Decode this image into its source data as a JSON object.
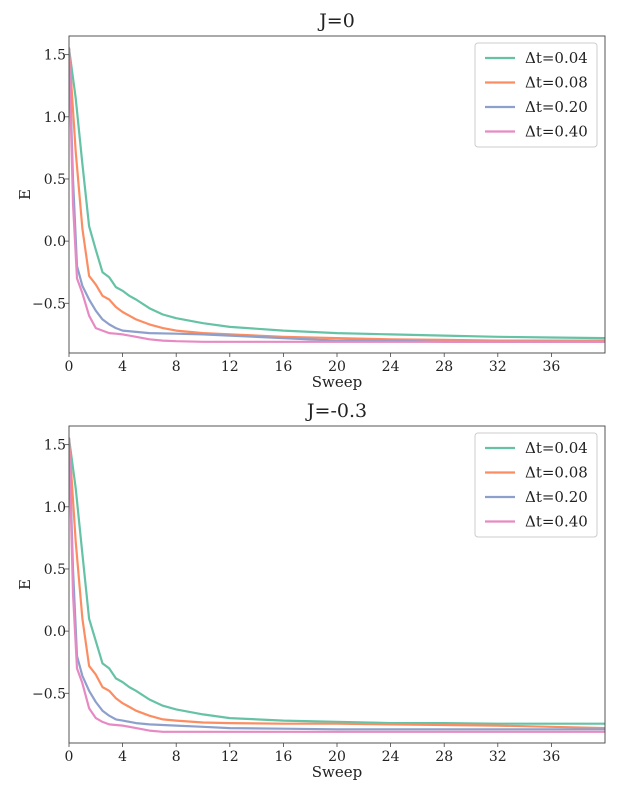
{
  "chart_data": [
    {
      "type": "line",
      "title": "J=0",
      "xlabel": "Sweep",
      "ylabel": "E",
      "xlim": [
        0,
        40
      ],
      "ylim": [
        -0.9,
        1.65
      ],
      "xticks": [
        0,
        4,
        8,
        12,
        16,
        20,
        24,
        28,
        32,
        36
      ],
      "xtick_labels": [
        "0",
        "4",
        "8",
        "12",
        "16",
        "20",
        "24",
        "28",
        "32",
        "36"
      ],
      "yticks": [
        -0.5,
        0.0,
        0.5,
        1.0,
        1.5
      ],
      "ytick_labels": [
        "−0.5",
        "0.0",
        "0.5",
        "1.0",
        "1.5"
      ],
      "legend_position": "top-right",
      "series": [
        {
          "name": "Δt=0.04",
          "color": "#66c2a5",
          "x": [
            0,
            0.5,
            1,
            1.5,
            2,
            2.5,
            3,
            3.5,
            4,
            4.5,
            5,
            6,
            7,
            8,
            10,
            12,
            16,
            20,
            24,
            28,
            32,
            36,
            40
          ],
          "y": [
            1.55,
            1.15,
            0.62,
            0.12,
            -0.07,
            -0.25,
            -0.29,
            -0.37,
            -0.4,
            -0.44,
            -0.47,
            -0.54,
            -0.59,
            -0.62,
            -0.66,
            -0.69,
            -0.72,
            -0.74,
            -0.75,
            -0.76,
            -0.77,
            -0.775,
            -0.78
          ]
        },
        {
          "name": "Δt=0.08",
          "color": "#fc8d62",
          "x": [
            0,
            0.5,
            1,
            1.5,
            2,
            2.5,
            3,
            3.5,
            4,
            4.5,
            5,
            6,
            7,
            8,
            10,
            12,
            16,
            20,
            24,
            28,
            32,
            36,
            40
          ],
          "y": [
            1.55,
            0.72,
            0.1,
            -0.28,
            -0.35,
            -0.44,
            -0.47,
            -0.53,
            -0.57,
            -0.6,
            -0.63,
            -0.67,
            -0.7,
            -0.72,
            -0.74,
            -0.75,
            -0.77,
            -0.78,
            -0.79,
            -0.795,
            -0.8,
            -0.8,
            -0.8
          ]
        },
        {
          "name": "Δt=0.20",
          "color": "#8da0cb",
          "x": [
            0,
            0.3,
            0.6,
            1,
            1.5,
            2,
            2.5,
            3,
            3.5,
            4,
            5,
            6,
            8,
            10,
            12,
            16,
            20,
            24,
            28,
            32,
            36,
            40
          ],
          "y": [
            1.55,
            0.5,
            -0.2,
            -0.36,
            -0.47,
            -0.56,
            -0.63,
            -0.67,
            -0.7,
            -0.72,
            -0.73,
            -0.74,
            -0.745,
            -0.75,
            -0.76,
            -0.78,
            -0.8,
            -0.8,
            -0.81,
            -0.81,
            -0.81,
            -0.81
          ]
        },
        {
          "name": "Δt=0.40",
          "color": "#e78ac3",
          "x": [
            0,
            0.3,
            0.6,
            1,
            1.5,
            2,
            2.5,
            3,
            3.5,
            4,
            5,
            6,
            7,
            8,
            10,
            12,
            16,
            20,
            24,
            28,
            32,
            36,
            40
          ],
          "y": [
            1.55,
            0.3,
            -0.3,
            -0.42,
            -0.6,
            -0.7,
            -0.72,
            -0.74,
            -0.745,
            -0.75,
            -0.77,
            -0.79,
            -0.8,
            -0.805,
            -0.81,
            -0.81,
            -0.81,
            -0.81,
            -0.81,
            -0.81,
            -0.81,
            -0.81,
            -0.81
          ]
        }
      ]
    },
    {
      "type": "line",
      "title": "J=-0.3",
      "xlabel": "Sweep",
      "ylabel": "E",
      "xlim": [
        0,
        40
      ],
      "ylim": [
        -0.9,
        1.65
      ],
      "xticks": [
        0,
        4,
        8,
        12,
        16,
        20,
        24,
        28,
        32,
        36
      ],
      "xtick_labels": [
        "0",
        "4",
        "8",
        "12",
        "16",
        "20",
        "24",
        "28",
        "32",
        "36"
      ],
      "yticks": [
        -0.5,
        0.0,
        0.5,
        1.0,
        1.5
      ],
      "ytick_labels": [
        "−0.5",
        "0.0",
        "0.5",
        "1.0",
        "1.5"
      ],
      "legend_position": "top-right",
      "series": [
        {
          "name": "Δt=0.04",
          "color": "#66c2a5",
          "x": [
            0,
            0.5,
            1,
            1.5,
            2,
            2.5,
            3,
            3.5,
            4,
            4.5,
            5,
            6,
            7,
            8,
            10,
            12,
            16,
            20,
            24,
            28,
            32,
            36,
            40
          ],
          "y": [
            1.55,
            1.15,
            0.62,
            0.1,
            -0.08,
            -0.26,
            -0.3,
            -0.38,
            -0.41,
            -0.45,
            -0.48,
            -0.55,
            -0.6,
            -0.63,
            -0.67,
            -0.7,
            -0.72,
            -0.73,
            -0.74,
            -0.74,
            -0.745,
            -0.745,
            -0.745
          ]
        },
        {
          "name": "Δt=0.08",
          "color": "#fc8d62",
          "x": [
            0,
            0.5,
            1,
            1.5,
            2,
            2.5,
            3,
            3.5,
            4,
            4.5,
            5,
            6,
            7,
            8,
            10,
            12,
            16,
            20,
            24,
            28,
            32,
            36,
            40
          ],
          "y": [
            1.55,
            0.72,
            0.1,
            -0.28,
            -0.35,
            -0.45,
            -0.48,
            -0.54,
            -0.58,
            -0.61,
            -0.64,
            -0.68,
            -0.71,
            -0.72,
            -0.735,
            -0.74,
            -0.745,
            -0.745,
            -0.75,
            -0.755,
            -0.76,
            -0.77,
            -0.78
          ]
        },
        {
          "name": "Δt=0.20",
          "color": "#8da0cb",
          "x": [
            0,
            0.3,
            0.6,
            1,
            1.5,
            2,
            2.5,
            3,
            3.5,
            4,
            5,
            6,
            8,
            10,
            12,
            16,
            20,
            24,
            28,
            32,
            36,
            40
          ],
          "y": [
            1.55,
            0.5,
            -0.2,
            -0.36,
            -0.48,
            -0.57,
            -0.64,
            -0.68,
            -0.71,
            -0.72,
            -0.74,
            -0.75,
            -0.76,
            -0.77,
            -0.78,
            -0.785,
            -0.79,
            -0.79,
            -0.79,
            -0.79,
            -0.79,
            -0.79
          ]
        },
        {
          "name": "Δt=0.40",
          "color": "#e78ac3",
          "x": [
            0,
            0.3,
            0.6,
            1,
            1.5,
            2,
            2.5,
            3,
            3.5,
            4,
            5,
            6,
            7,
            8,
            10,
            12,
            16,
            20,
            24,
            28,
            32,
            36,
            40
          ],
          "y": [
            1.55,
            0.3,
            -0.3,
            -0.42,
            -0.62,
            -0.7,
            -0.73,
            -0.75,
            -0.755,
            -0.76,
            -0.78,
            -0.8,
            -0.81,
            -0.81,
            -0.81,
            -0.81,
            -0.81,
            -0.81,
            -0.81,
            -0.81,
            -0.81,
            -0.81,
            -0.81
          ]
        }
      ]
    }
  ]
}
